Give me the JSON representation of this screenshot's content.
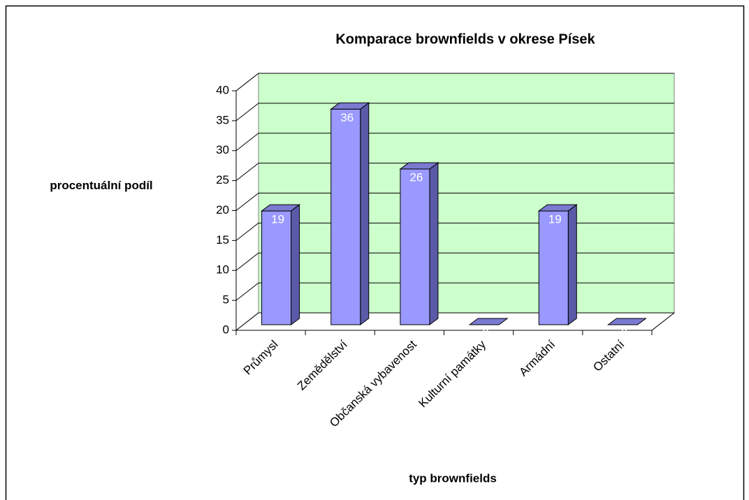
{
  "chart_data": {
    "type": "bar3d",
    "title": "Komparace brownfields v okrese Písek",
    "x_label": "typ brownfields",
    "y_label": "procentuální podíl",
    "categories": [
      "Průmysl",
      "Zemědělství",
      "Občanská vybavenost",
      "Kulturní památky",
      "Armádní",
      "Ostatní"
    ],
    "values": [
      19,
      36,
      26,
      0,
      19,
      0
    ],
    "color": "#9999ff",
    "wall_color": "#ccffcc",
    "ylim": [
      0,
      40
    ],
    "yticks": [
      0,
      5,
      10,
      15,
      20,
      25,
      30,
      35,
      40
    ],
    "grid": true
  }
}
